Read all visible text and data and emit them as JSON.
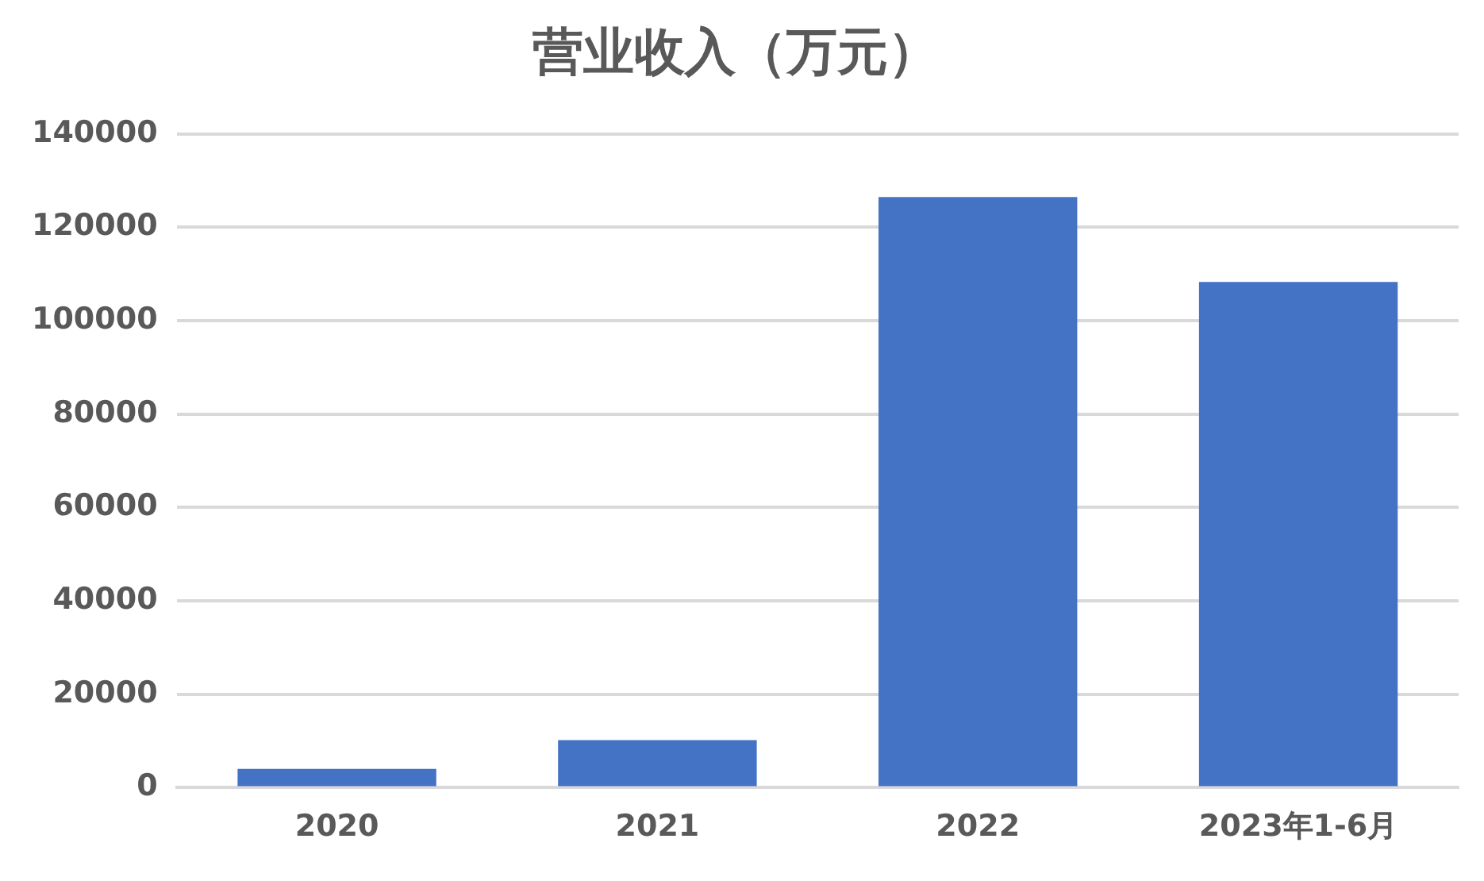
{
  "chart_data": {
    "type": "bar",
    "title": "营业收入（万元）",
    "categories": [
      "2020",
      "2021",
      "2022",
      "2023年1-6月"
    ],
    "values": [
      4000,
      10200,
      126500,
      108300
    ],
    "color": "#4472c4",
    "ylim": [
      0,
      140000
    ],
    "yticks": [
      0,
      20000,
      40000,
      60000,
      80000,
      100000,
      120000,
      140000
    ],
    "grid": "y"
  }
}
